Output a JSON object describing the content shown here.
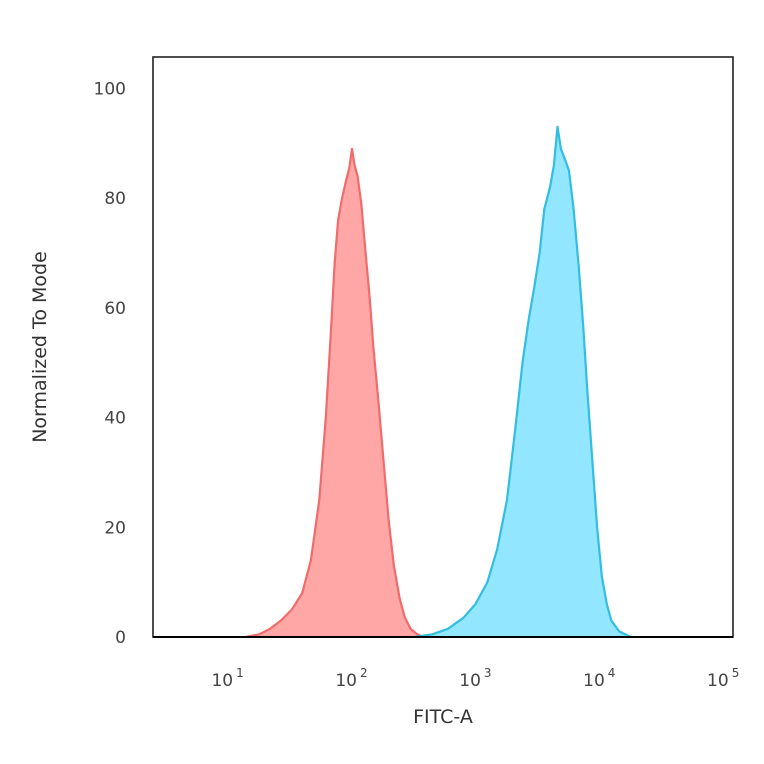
{
  "chart_data": {
    "type": "area",
    "title": "",
    "xlabel": "FITC-A",
    "ylabel": "Normalized To Mode",
    "x_scale": "log10",
    "xlim": [
      2.5,
      120000
    ],
    "ylim": [
      0,
      105
    ],
    "grid": false,
    "legend": "none",
    "x_ticks": [
      {
        "value": 10,
        "base": "10",
        "exp": "1"
      },
      {
        "value": 100,
        "base": "10",
        "exp": "2"
      },
      {
        "value": 1000,
        "base": "10",
        "exp": "3"
      },
      {
        "value": 10000,
        "base": "10",
        "exp": "4"
      },
      {
        "value": 100000,
        "base": "10",
        "exp": "5"
      }
    ],
    "y_ticks": [
      {
        "value": 0,
        "label": "0"
      },
      {
        "value": 20,
        "label": "20"
      },
      {
        "value": 40,
        "label": "40"
      },
      {
        "value": 60,
        "label": "60"
      },
      {
        "value": 80,
        "label": "80"
      },
      {
        "value": 100,
        "label": "100"
      }
    ],
    "series": [
      {
        "color": "#f26b6b",
        "fill": "#ff9898",
        "points": [
          [
            14,
            0
          ],
          [
            18,
            0.5
          ],
          [
            22,
            1.5
          ],
          [
            27,
            3
          ],
          [
            33,
            5
          ],
          [
            40,
            8
          ],
          [
            47,
            14
          ],
          [
            55,
            25
          ],
          [
            62,
            40
          ],
          [
            68,
            55
          ],
          [
            73,
            68
          ],
          [
            78,
            76
          ],
          [
            84,
            80
          ],
          [
            90,
            83
          ],
          [
            96,
            85.5
          ],
          [
            101,
            89
          ],
          [
            106,
            86
          ],
          [
            112,
            84
          ],
          [
            120,
            79
          ],
          [
            130,
            70
          ],
          [
            140,
            62
          ],
          [
            150,
            53
          ],
          [
            165,
            43
          ],
          [
            180,
            33
          ],
          [
            200,
            21
          ],
          [
            220,
            13
          ],
          [
            245,
            7
          ],
          [
            270,
            3.5
          ],
          [
            300,
            1.5
          ],
          [
            340,
            0.5
          ],
          [
            380,
            0
          ]
        ]
      },
      {
        "color": "#33bde0",
        "fill": "#80e2ff",
        "points": [
          [
            320,
            0
          ],
          [
            450,
            0.5
          ],
          [
            600,
            1.5
          ],
          [
            800,
            3.5
          ],
          [
            1000,
            6
          ],
          [
            1250,
            10
          ],
          [
            1500,
            16
          ],
          [
            1800,
            25
          ],
          [
            2100,
            38
          ],
          [
            2400,
            50
          ],
          [
            2700,
            58
          ],
          [
            3000,
            64
          ],
          [
            3300,
            70
          ],
          [
            3600,
            78
          ],
          [
            4000,
            82
          ],
          [
            4300,
            86
          ],
          [
            4600,
            93
          ],
          [
            4900,
            89
          ],
          [
            5300,
            87
          ],
          [
            5700,
            85
          ],
          [
            6200,
            78
          ],
          [
            6800,
            68
          ],
          [
            7400,
            57
          ],
          [
            8000,
            45
          ],
          [
            8800,
            32
          ],
          [
            9600,
            20
          ],
          [
            10500,
            11
          ],
          [
            11500,
            6
          ],
          [
            12500,
            3
          ],
          [
            14500,
            1
          ],
          [
            18000,
            0
          ]
        ]
      }
    ]
  }
}
